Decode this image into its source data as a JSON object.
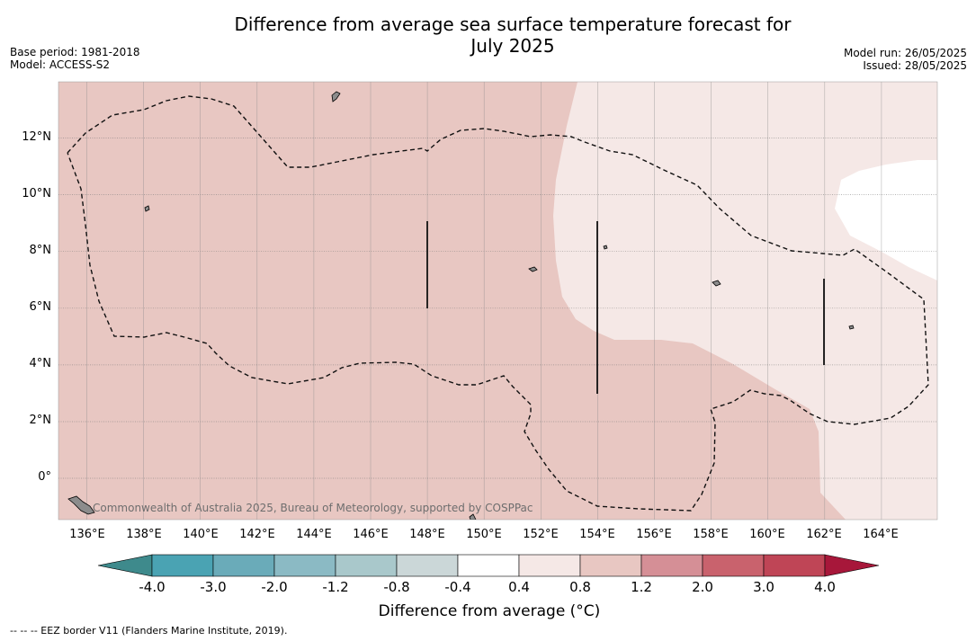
{
  "title_line1": "Difference from average sea surface temperature forecast for",
  "title_line2": "July 2025",
  "base_period": "Base period: 1981-2018",
  "model": "Model: ACCESS-S2",
  "model_run": "Model run: 26/05/2025",
  "issued": "Issued: 28/05/2025",
  "credit": "Commonwealth of Australia 2025, Bureau of Meteorology, supported by COSPPac",
  "lon_labels": [
    "136°E",
    "138°E",
    "140°E",
    "142°E",
    "144°E",
    "146°E",
    "148°E",
    "150°E",
    "152°E",
    "154°E",
    "156°E",
    "158°E",
    "160°E",
    "162°E",
    "164°E"
  ],
  "lat_labels": [
    "12°N",
    "10°N",
    "8°N",
    "6°N",
    "4°N",
    "2°N",
    "0°"
  ],
  "colorbar": {
    "title": "Difference from average (°C)",
    "labels": [
      "-4.0",
      "-3.0",
      "-2.0",
      "-1.2",
      "-0.8",
      "-0.4",
      "0.4",
      "0.8",
      "1.2",
      "2.0",
      "3.0",
      "4.0"
    ],
    "colors": [
      "#4aa3b3",
      "#6aabb9",
      "#8bbac4",
      "#a9c8cb",
      "#cbd7d8",
      "#ffffff",
      "#f5e8e6",
      "#e8c7c2",
      "#d58f96",
      "#c9626d",
      "#bf4556"
    ],
    "under_color": "#3e8a8c",
    "over_color": "#a7173a"
  },
  "legend_note": "--  --  -- EEZ border V11 (Flanders Marine Institute, 2019)."
}
